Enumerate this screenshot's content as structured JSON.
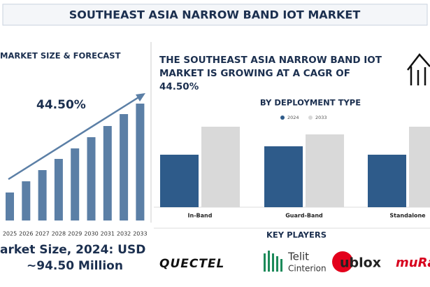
{
  "header": {
    "title": "SOUTHEAST ASIA NARROW BAND IOT MARKET"
  },
  "left": {
    "heading": "MARKET SIZE & FORECAST",
    "size_line1": "arket Size, 2024: USD",
    "size_line2": "~94.50 Million"
  },
  "right": {
    "headline": [
      "THE SOUTHEAST ASIA NARROW BAND IOT",
      "MARKET IS GROWING AT A CAGR OF",
      "44.50%"
    ]
  },
  "chart_data": [
    {
      "type": "bar",
      "annotation": "44.50%",
      "color": "#5b7fa6",
      "categories": [
        "2025",
        "2026",
        "2027",
        "2028",
        "2029",
        "2030",
        "2031",
        "2032",
        "2033"
      ],
      "values": [
        40,
        56,
        72,
        88,
        103,
        119,
        135,
        152,
        167
      ]
    },
    {
      "type": "grouped-bar",
      "title": "BY DEPLOYMENT TYPE",
      "categories": [
        "In-Band",
        "Guard-Band",
        "Standalone"
      ],
      "series": [
        {
          "name": "2024",
          "color": "#2e5b8a",
          "values": [
            75,
            87,
            75
          ]
        },
        {
          "name": "2033",
          "color": "#d9d9d9",
          "values": [
            115,
            104,
            115
          ]
        }
      ]
    }
  ],
  "key_players": {
    "title": "KEY PLAYERS",
    "names": [
      "QUECTEL",
      "Telit",
      "Cinterion",
      "ublox",
      "muRata"
    ]
  }
}
